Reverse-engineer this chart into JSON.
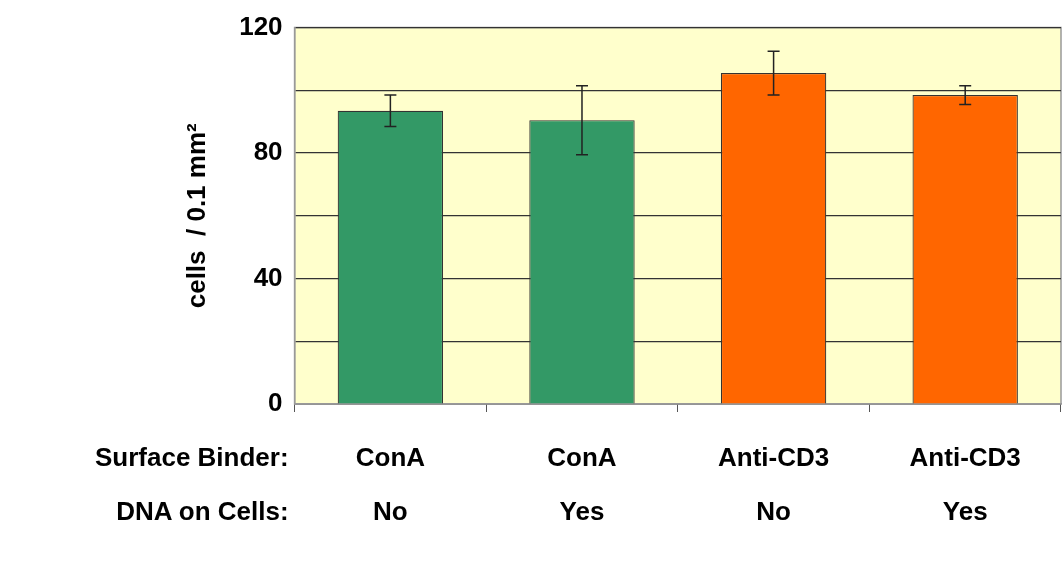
{
  "chart_data": {
    "type": "bar",
    "ylabel": "cells  / 0.1 mm²",
    "categories": [
      "ConA\nNo",
      "ConA\nYes",
      "Anti-CD3\nNo",
      "Anti-CD3\nYes"
    ],
    "values": [
      93.5,
      90.5,
      105.5,
      98.5
    ],
    "errors": [
      5,
      11,
      7,
      3
    ],
    "colors": [
      "#339966",
      "#339966",
      "#ff6600",
      "#ff6600"
    ],
    "ylim": [
      0,
      120
    ],
    "yticks": [
      0,
      {
        "value": 20,
        "label": null
      },
      40,
      {
        "value": 60,
        "label": null
      },
      80,
      {
        "value": 100,
        "label": null
      },
      120
    ],
    "grid": "y",
    "legend": false,
    "annotations": [
      "Surface Binder:",
      "DNA on Cells:"
    ]
  }
}
